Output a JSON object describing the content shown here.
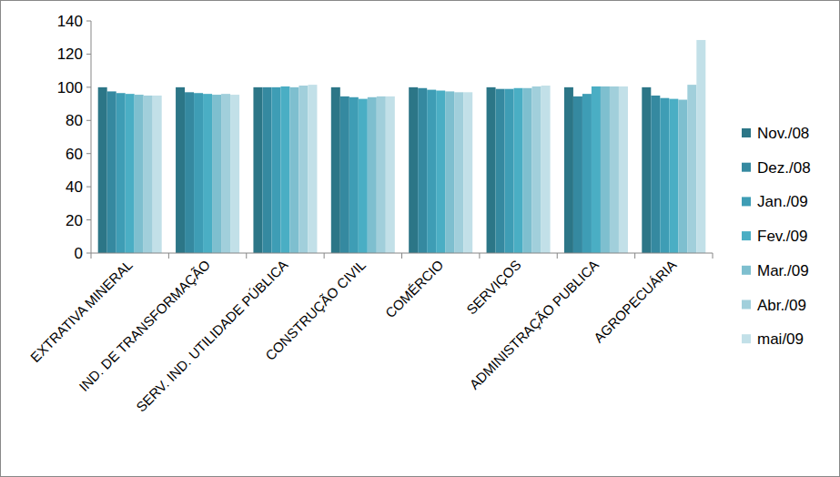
{
  "chart_data": {
    "type": "bar",
    "categories": [
      "EXTRATIVA MINERAL",
      "IND. DE TRANSFORMAÇÃO",
      "SERV. IND. UTILIDADE PÚBLICA",
      "CONSTRUÇÃO CIVIL",
      "COMÉRCIO",
      "SERVIÇOS",
      "ADMINISTRAÇÃO PUBLICA",
      "AGROPECUÁRIA"
    ],
    "series": [
      {
        "name": "Nov./08",
        "color": "#2c7687",
        "values": [
          100,
          100,
          100,
          100,
          100,
          100,
          100,
          100
        ]
      },
      {
        "name": "Dez./08",
        "color": "#3589a0",
        "values": [
          97.5,
          97,
          100,
          94.5,
          99.5,
          99,
          94.5,
          95
        ]
      },
      {
        "name": "Jan./09",
        "color": "#3e9db5",
        "values": [
          96.5,
          96.5,
          100,
          94,
          98.5,
          99,
          96,
          93.5
        ]
      },
      {
        "name": "Fev./09",
        "color": "#4aaec4",
        "values": [
          96,
          96,
          100.5,
          93,
          98,
          99.5,
          100.5,
          93
        ]
      },
      {
        "name": "Mar./09",
        "color": "#7ebfcf",
        "values": [
          95.5,
          95.5,
          100,
          94,
          97.5,
          99.5,
          100.5,
          92.5
        ]
      },
      {
        "name": "Abr./09",
        "color": "#a1cfdb",
        "values": [
          95,
          96,
          101,
          94.5,
          97,
          100.5,
          100.5,
          101.5
        ]
      },
      {
        "name": "mai/09",
        "color": "#c2e0e8",
        "values": [
          95,
          95.5,
          101.5,
          94.5,
          97,
          101,
          100.5,
          128.5
        ]
      }
    ],
    "ylim": [
      0,
      140
    ],
    "yticks": [
      0,
      20,
      40,
      60,
      80,
      100,
      120,
      140
    ],
    "grid": false,
    "legend": "right"
  }
}
